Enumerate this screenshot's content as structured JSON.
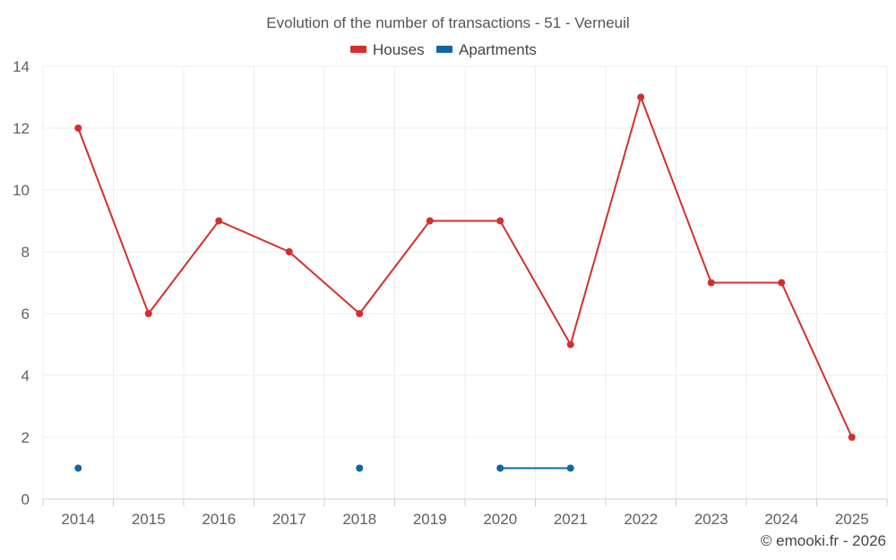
{
  "chart_data": {
    "type": "line",
    "title": "Evolution of the number of transactions - 51 - Verneuil",
    "xlabel": "",
    "ylabel": "",
    "categories": [
      "2014",
      "2015",
      "2016",
      "2017",
      "2018",
      "2019",
      "2020",
      "2021",
      "2022",
      "2023",
      "2024",
      "2025"
    ],
    "ylim": [
      0,
      14
    ],
    "yticks": [
      0,
      2,
      4,
      6,
      8,
      10,
      12,
      14
    ],
    "grid": true,
    "legend_position": "top-center",
    "series": [
      {
        "name": "Houses",
        "color": "#d32f2f",
        "values": [
          12,
          6,
          9,
          8,
          6,
          9,
          9,
          5,
          13,
          7,
          7,
          2
        ]
      },
      {
        "name": "Apartments",
        "color": "#0b6aa2",
        "values": [
          1,
          null,
          null,
          null,
          1,
          null,
          1,
          1,
          null,
          null,
          null,
          null
        ]
      }
    ],
    "credit": "© emooki.fr - 2026"
  }
}
